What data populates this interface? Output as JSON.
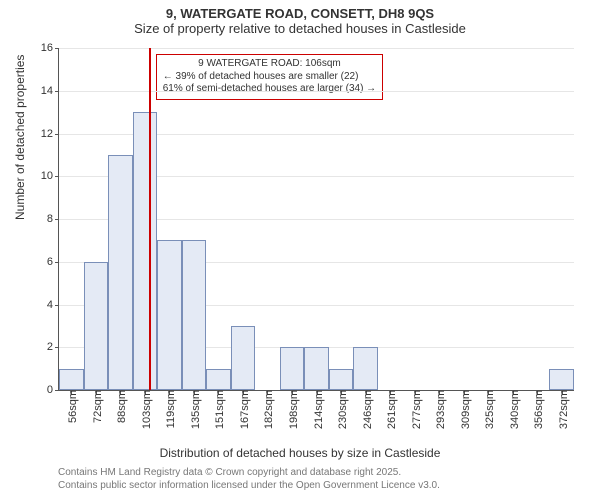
{
  "title_main": "9, WATERGATE ROAD, CONSETT, DH8 9QS",
  "title_sub": "Size of property relative to detached houses in Castleside",
  "chart": {
    "type": "histogram",
    "xlabel": "Distribution of detached houses by size in Castleside",
    "ylabel": "Number of detached properties",
    "ylim": [
      0,
      16
    ],
    "ytick_step": 2,
    "bar_fill": "#e4eaf5",
    "bar_stroke": "#7a8fb8",
    "grid_color": "#e6e6e6",
    "background": "#ffffff",
    "axis_fontsize": 11,
    "label_fontsize": 12,
    "x_categories": [
      "56sqm",
      "72sqm",
      "88sqm",
      "103sqm",
      "119sqm",
      "135sqm",
      "151sqm",
      "167sqm",
      "182sqm",
      "198sqm",
      "214sqm",
      "230sqm",
      "246sqm",
      "261sqm",
      "277sqm",
      "293sqm",
      "309sqm",
      "325sqm",
      "340sqm",
      "356sqm",
      "372sqm"
    ],
    "values": [
      1,
      6,
      11,
      13,
      7,
      7,
      1,
      3,
      0,
      2,
      2,
      1,
      2,
      0,
      0,
      0,
      0,
      0,
      0,
      0,
      1
    ],
    "marker": {
      "color": "#cc0000",
      "position_index": 3.2,
      "label_line1": "9 WATERGATE ROAD: 106sqm",
      "label_line2": "← 39% of detached houses are smaller (22)",
      "label_line3": "61% of semi-detached houses are larger (34) →"
    }
  },
  "footer_line1": "Contains HM Land Registry data © Crown copyright and database right 2025.",
  "footer_line2": "Contains public sector information licensed under the Open Government Licence v3.0."
}
